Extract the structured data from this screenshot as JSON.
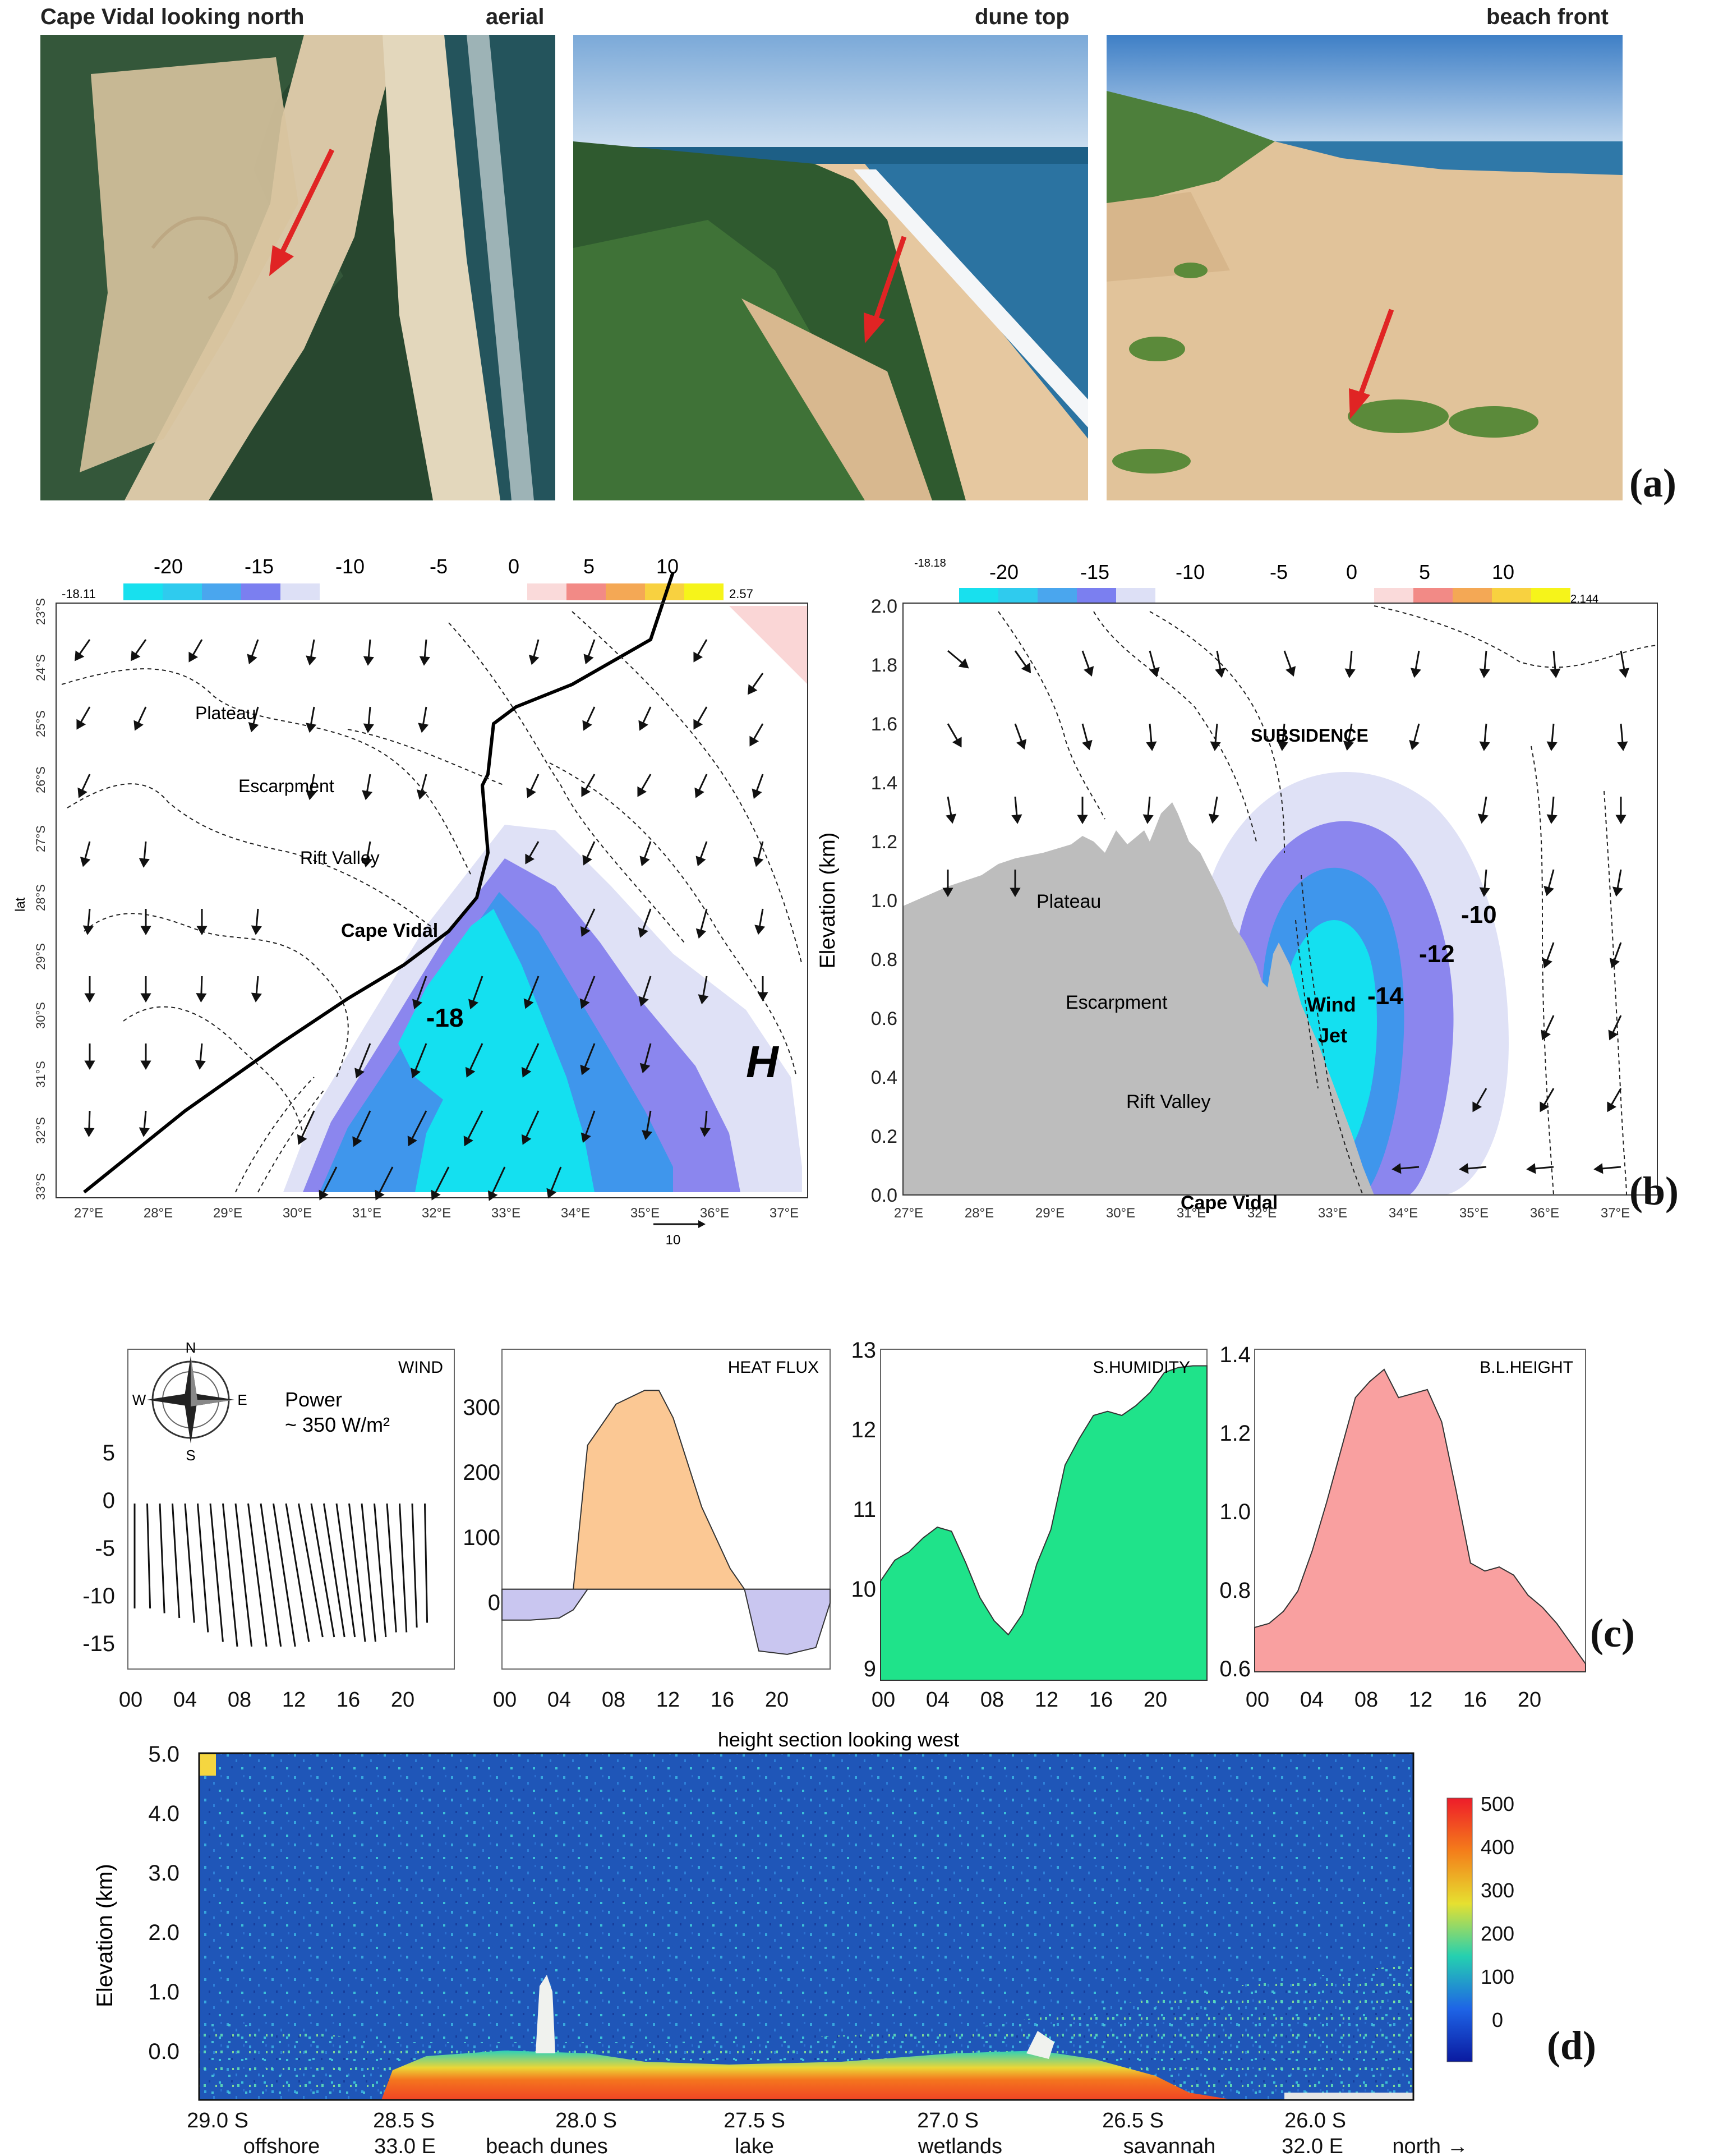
{
  "panel_a": {
    "photo1_title": "Cape Vidal looking north",
    "photo1_tag": "aerial",
    "photo2_tag": "dune top",
    "photo3_tag": "beach front",
    "letter": "(a)"
  },
  "panel_b": {
    "letter": "(b)",
    "colorbar_ticks": [
      "-20",
      "-15",
      "-10",
      "-5",
      "0",
      "5",
      "10"
    ],
    "left": {
      "cb_min": "-18.11",
      "cb_max": "2.57",
      "lat_label": "lat",
      "lat_ticks": [
        "23°S",
        "24°S",
        "25°S",
        "26°S",
        "27°S",
        "28°S",
        "29°S",
        "30°S",
        "31°S",
        "32°S",
        "33°S"
      ],
      "lon_ticks": [
        "27°E",
        "28°E",
        "29°E",
        "30°E",
        "31°E",
        "32°E",
        "33°E",
        "34°E",
        "35°E",
        "36°E",
        "37°E"
      ],
      "labels": [
        "Plateau",
        "Escarpment",
        "Rift Valley",
        "Cape Vidal"
      ],
      "value_label": "-18",
      "high_label": "H",
      "vector_scale": "10"
    },
    "right": {
      "cb_min": "-18.18",
      "cb_max": "2.144",
      "ylabel": "Elevation (km)",
      "y_ticks": [
        "0.0",
        "0.2",
        "0.4",
        "0.6",
        "0.8",
        "1.0",
        "1.2",
        "1.4",
        "1.6",
        "1.8",
        "2.0"
      ],
      "lon_ticks": [
        "27°E",
        "28°E",
        "29°E",
        "30°E",
        "31°E",
        "32°E",
        "33°E",
        "34°E",
        "35°E",
        "36°E",
        "37°E"
      ],
      "labels": [
        "SUBSIDENCE",
        "Plateau",
        "Escarpment",
        "Rift Valley",
        "Cape Vidal",
        "Wind",
        "Jet"
      ],
      "contour_labels": [
        "-10",
        "-12",
        "-14"
      ]
    }
  },
  "panel_c": {
    "letter": "(c)",
    "x_ticks": [
      "00",
      "04",
      "08",
      "12",
      "16",
      "20"
    ],
    "wind": {
      "title": "WIND",
      "compass": [
        "N",
        "S",
        "W",
        "E"
      ],
      "power_line1": "Power",
      "power_line2": "~ 350 W/m²",
      "y_ticks": [
        "5",
        "0",
        "-5",
        "-10",
        "-15"
      ]
    },
    "heat": {
      "title": "HEAT FLUX",
      "y_ticks": [
        "300",
        "200",
        "100",
        "0"
      ]
    },
    "humidity": {
      "title": "S.HUMIDITY",
      "y_ticks": [
        "13",
        "12",
        "11",
        "10",
        "9"
      ]
    },
    "blh": {
      "title": "B.L.HEIGHT",
      "y_ticks": [
        "1.4",
        "1.2",
        "1.0",
        "0.8",
        "0.6"
      ]
    }
  },
  "panel_d": {
    "letter": "(d)",
    "title": "height section looking west",
    "ylabel": "Elevation (km)",
    "y_ticks": [
      "5.0",
      "4.0",
      "3.0",
      "2.0",
      "1.0",
      "0.0"
    ],
    "lat_ticks": [
      "29.0 S",
      "28.5 S",
      "28.0 S",
      "27.5 S",
      "27.0 S",
      "26.5 S",
      "26.0 S"
    ],
    "bottom_labels": [
      "offshore",
      "33.0 E",
      "beach dunes",
      "lake",
      "wetlands",
      "savannah",
      "32.0 E",
      "north →"
    ],
    "colorbar_ticks": [
      "500",
      "400",
      "300",
      "200",
      "100",
      "0"
    ]
  },
  "chart_data": [
    {
      "type": "area",
      "title": "HEAT FLUX",
      "x": [
        0,
        2,
        4,
        5,
        6,
        8,
        10,
        11,
        12,
        14,
        16,
        17,
        18,
        20,
        22,
        23
      ],
      "values": [
        -45,
        -45,
        -42,
        -30,
        210,
        270,
        290,
        290,
        250,
        120,
        30,
        0,
        -90,
        -95,
        -85,
        -20
      ],
      "xlim": [
        0,
        23
      ],
      "ylim": [
        -100,
        350
      ]
    },
    {
      "type": "area",
      "title": "S.HUMIDITY",
      "x": [
        0,
        1,
        2,
        3,
        4,
        5,
        6,
        7,
        8,
        9,
        10,
        11,
        12,
        13,
        14,
        15,
        16,
        17,
        18,
        19,
        20,
        21,
        22,
        23
      ],
      "values": [
        10.2,
        10.45,
        10.55,
        10.72,
        10.85,
        10.8,
        10.42,
        10.0,
        9.72,
        9.55,
        9.8,
        10.4,
        10.82,
        11.6,
        11.92,
        12.2,
        12.25,
        12.2,
        12.32,
        12.48,
        12.72,
        12.78,
        12.8,
        12.8
      ],
      "xlim": [
        0,
        23
      ],
      "ylim": [
        9,
        13
      ]
    },
    {
      "type": "area",
      "title": "B.L.HEIGHT",
      "x": [
        0,
        1,
        2,
        3,
        4,
        5,
        6,
        7,
        8,
        9,
        10,
        11,
        12,
        13,
        14,
        15,
        16,
        17,
        18,
        19,
        20,
        21,
        22,
        23
      ],
      "values": [
        0.71,
        0.72,
        0.75,
        0.8,
        0.9,
        1.02,
        1.15,
        1.28,
        1.32,
        1.35,
        1.28,
        1.29,
        1.3,
        1.22,
        1.05,
        0.87,
        0.85,
        0.86,
        0.84,
        0.79,
        0.76,
        0.72,
        0.67,
        0.62
      ],
      "xlim": [
        0,
        23
      ],
      "ylim": [
        0.6,
        1.4
      ]
    },
    {
      "type": "line",
      "title": "WIND",
      "x": [
        0,
        1,
        2,
        3,
        4,
        5,
        6,
        7,
        8,
        9,
        10,
        11,
        12,
        13,
        14,
        15,
        16,
        17,
        18,
        19,
        20,
        21,
        22,
        23
      ],
      "u": [
        0,
        0.5,
        0.8,
        1.2,
        1.6,
        1.8,
        2.2,
        2.5,
        2.8,
        3.2,
        3.5,
        3.8,
        4.0,
        4.2,
        4.0,
        3.6,
        3.2,
        2.8,
        2.4,
        2.0,
        1.6,
        1.2,
        0.8,
        0.4
      ],
      "v": [
        -11,
        -11,
        -11.5,
        -12,
        -12.5,
        -13.5,
        -14.5,
        -15,
        -15,
        -15,
        -15,
        -15,
        -14.5,
        -14,
        -14,
        -14,
        -14,
        -14.5,
        -14.5,
        -14,
        -13.5,
        -13.5,
        -13,
        -12.5
      ],
      "ylim": [
        -17,
        8
      ]
    }
  ]
}
